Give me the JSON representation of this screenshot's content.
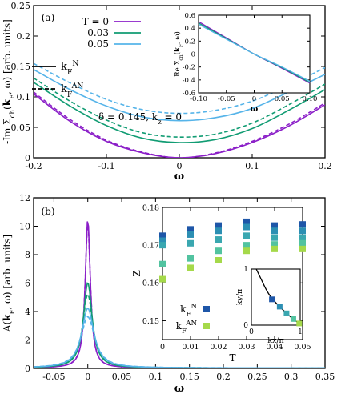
{
  "chart_data": [
    {
      "panel_label": "(a)",
      "type": "line",
      "xlabel": "ω",
      "ylabel": "-Im Σch(kF, ω) [arb. units]",
      "xlim": [
        -0.2,
        0.2
      ],
      "ylim": [
        0,
        0.25
      ],
      "xticks": [
        "-0.2",
        "-0.1",
        "0",
        "0.1",
        "0.2"
      ],
      "yticks": [
        "0",
        "0.05",
        "0.1",
        "0.15",
        "0.2",
        "0.25"
      ],
      "annotation": "δ = 0.145, kz = 0",
      "legend": {
        "temperatures": [
          {
            "label": "T = 0",
            "color": "#8B1FC8"
          },
          {
            "label": "0.03",
            "color": "#119C73"
          },
          {
            "label": "0.05",
            "color": "#56B4E9"
          }
        ],
        "linestyles": [
          {
            "label": "k_F^N",
            "dash": "solid"
          },
          {
            "label": "k_F^AN",
            "dash": "dashed"
          }
        ]
      },
      "series": [
        {
          "T": 0,
          "kF": "N",
          "color": "#8B1FC8",
          "dash": "solid",
          "x": [
            -0.2,
            -0.15,
            -0.1,
            -0.05,
            0,
            0.05,
            0.1,
            0.15,
            0.2
          ],
          "y": [
            0.105,
            0.06,
            0.027,
            0.008,
            0.0,
            0.007,
            0.025,
            0.052,
            0.087
          ]
        },
        {
          "T": 0,
          "kF": "AN",
          "color": "#8B1FC8",
          "dash": "dashed",
          "x": [
            -0.2,
            -0.15,
            -0.1,
            -0.05,
            0,
            0.05,
            0.1,
            0.15,
            0.2
          ],
          "y": [
            0.108,
            0.063,
            0.029,
            0.009,
            0.0,
            0.008,
            0.027,
            0.055,
            0.09
          ]
        },
        {
          "T": 0.03,
          "kF": "N",
          "color": "#119C73",
          "dash": "solid",
          "x": [
            -0.2,
            -0.15,
            -0.1,
            -0.05,
            0,
            0.05,
            0.1,
            0.15,
            0.2
          ],
          "y": [
            0.124,
            0.085,
            0.053,
            0.032,
            0.025,
            0.03,
            0.048,
            0.078,
            0.112
          ]
        },
        {
          "T": 0.03,
          "kF": "AN",
          "color": "#119C73",
          "dash": "dashed",
          "x": [
            -0.2,
            -0.15,
            -0.1,
            -0.05,
            0,
            0.05,
            0.1,
            0.15,
            0.2
          ],
          "y": [
            0.131,
            0.093,
            0.062,
            0.041,
            0.034,
            0.039,
            0.057,
            0.087,
            0.121
          ]
        },
        {
          "T": 0.05,
          "kF": "N",
          "color": "#56B4E9",
          "dash": "solid",
          "x": [
            -0.2,
            -0.15,
            -0.1,
            -0.05,
            0,
            0.05,
            0.1,
            0.15,
            0.2
          ],
          "y": [
            0.145,
            0.112,
            0.085,
            0.067,
            0.061,
            0.066,
            0.081,
            0.108,
            0.137
          ]
        },
        {
          "T": 0.05,
          "kF": "AN",
          "color": "#56B4E9",
          "dash": "dashed",
          "x": [
            -0.2,
            -0.15,
            -0.1,
            -0.05,
            0,
            0.05,
            0.1,
            0.15,
            0.2
          ],
          "y": [
            0.155,
            0.123,
            0.096,
            0.079,
            0.073,
            0.078,
            0.093,
            0.119,
            0.148
          ]
        }
      ]
    },
    {
      "panel_label": "(a) inset",
      "type": "line",
      "xlabel": "ω",
      "ylabel": "Re Σch(kF, ω)",
      "xlim": [
        -0.1,
        0.1
      ],
      "ylim": [
        -0.6,
        0.6
      ],
      "xticks": [
        "-0.10",
        "-0.05",
        "0",
        "0.05",
        "0.10"
      ],
      "yticks": [
        "-0.6",
        "-0.4",
        "-0.2",
        "0",
        "0.2",
        "0.4",
        "0.6"
      ],
      "series": [
        {
          "color": "#8B1FC8",
          "x": [
            -0.1,
            -0.05,
            0,
            0.05,
            0.1
          ],
          "y": [
            0.5,
            0.25,
            0.0,
            -0.22,
            -0.45
          ]
        },
        {
          "color": "#119C73",
          "x": [
            -0.1,
            -0.05,
            0,
            0.05,
            0.1
          ],
          "y": [
            0.48,
            0.24,
            0.0,
            -0.21,
            -0.44
          ]
        },
        {
          "color": "#56B4E9",
          "x": [
            -0.1,
            -0.05,
            0,
            0.05,
            0.1
          ],
          "y": [
            0.46,
            0.23,
            0.0,
            -0.2,
            -0.42
          ]
        }
      ]
    },
    {
      "panel_label": "(b)",
      "type": "line",
      "xlabel": "ω",
      "ylabel": "A(kF, ω) [arb. units]",
      "xlim": [
        -0.08,
        0.35
      ],
      "ylim": [
        0,
        12
      ],
      "xticks": [
        "-0.05",
        "0",
        "0.05",
        "0.1",
        "0.15",
        "0.2",
        "0.25",
        "0.3",
        "0.35"
      ],
      "yticks": [
        "0",
        "2",
        "4",
        "6",
        "8",
        "10",
        "12"
      ],
      "series": [
        {
          "T": 0,
          "kF": "N",
          "color": "#8B1FC8",
          "dash": "solid",
          "peak": 10.5,
          "width": 0.0045,
          "background": 0.03
        },
        {
          "T": 0,
          "kF": "AN",
          "color": "#8B1FC8",
          "dash": "dashed",
          "peak": 10.2,
          "width": 0.0047,
          "background": 0.03
        },
        {
          "T": 0.03,
          "kF": "N",
          "color": "#119C73",
          "dash": "solid",
          "peak": 6.0,
          "width": 0.0078,
          "background": 0.03
        },
        {
          "T": 0.03,
          "kF": "AN",
          "color": "#119C73",
          "dash": "dashed",
          "peak": 5.2,
          "width": 0.009,
          "background": 0.03
        },
        {
          "T": 0.05,
          "kF": "N",
          "color": "#56B4E9",
          "dash": "solid",
          "peak": 4.2,
          "width": 0.011,
          "background": 0.03
        },
        {
          "T": 0.05,
          "kF": "AN",
          "color": "#56B4E9",
          "dash": "dashed",
          "peak": 3.6,
          "width": 0.0125,
          "background": 0.03
        }
      ]
    },
    {
      "panel_label": "(b) inset",
      "type": "scatter",
      "xlabel": "T",
      "ylabel": "Z",
      "xlim": [
        0,
        0.05
      ],
      "ylim": [
        0.145,
        0.18
      ],
      "xticks": [
        "0",
        "0.01",
        "0.02",
        "0.03",
        "0.04",
        "0.05"
      ],
      "yticks": [
        "0.15",
        "0.16",
        "0.17",
        "0.18"
      ],
      "legend": [
        {
          "label": "k_F^N",
          "color": "#1E56A8"
        },
        {
          "label": "k_F^AN",
          "color": "#A5D94A"
        }
      ],
      "points": [
        {
          "T": 0,
          "Z": 0.1725,
          "color": "#1E56A8"
        },
        {
          "T": 0,
          "Z": 0.1712,
          "color": "#2C8FB3"
        },
        {
          "T": 0,
          "Z": 0.17,
          "color": "#3AA7B0"
        },
        {
          "T": 0,
          "Z": 0.165,
          "color": "#52C3A0"
        },
        {
          "T": 0,
          "Z": 0.161,
          "color": "#A5D94A"
        },
        {
          "T": 0.01,
          "Z": 0.1742,
          "color": "#1E56A8"
        },
        {
          "T": 0.01,
          "Z": 0.1728,
          "color": "#2C8FB3"
        },
        {
          "T": 0.01,
          "Z": 0.1705,
          "color": "#3AA7B0"
        },
        {
          "T": 0.01,
          "Z": 0.1665,
          "color": "#52C3A0"
        },
        {
          "T": 0.01,
          "Z": 0.164,
          "color": "#A5D94A"
        },
        {
          "T": 0.02,
          "Z": 0.1752,
          "color": "#1E56A8"
        },
        {
          "T": 0.02,
          "Z": 0.1738,
          "color": "#2C8FB3"
        },
        {
          "T": 0.02,
          "Z": 0.1715,
          "color": "#3AA7B0"
        },
        {
          "T": 0.02,
          "Z": 0.1685,
          "color": "#52C3A0"
        },
        {
          "T": 0.02,
          "Z": 0.166,
          "color": "#A5D94A"
        },
        {
          "T": 0.03,
          "Z": 0.1762,
          "color": "#1E56A8"
        },
        {
          "T": 0.03,
          "Z": 0.1748,
          "color": "#2C8FB3"
        },
        {
          "T": 0.03,
          "Z": 0.1725,
          "color": "#3AA7B0"
        },
        {
          "T": 0.03,
          "Z": 0.17,
          "color": "#52C3A0"
        },
        {
          "T": 0.03,
          "Z": 0.1685,
          "color": "#A5D94A"
        },
        {
          "T": 0.04,
          "Z": 0.1752,
          "color": "#1E56A8"
        },
        {
          "T": 0.04,
          "Z": 0.1738,
          "color": "#2C8FB3"
        },
        {
          "T": 0.04,
          "Z": 0.172,
          "color": "#3AA7B0"
        },
        {
          "T": 0.04,
          "Z": 0.1702,
          "color": "#52C3A0"
        },
        {
          "T": 0.04,
          "Z": 0.169,
          "color": "#A5D94A"
        },
        {
          "T": 0.05,
          "Z": 0.1755,
          "color": "#1E56A8"
        },
        {
          "T": 0.05,
          "Z": 0.1738,
          "color": "#2C8FB3"
        },
        {
          "T": 0.05,
          "Z": 0.172,
          "color": "#3AA7B0"
        },
        {
          "T": 0.05,
          "Z": 0.1705,
          "color": "#52C3A0"
        },
        {
          "T": 0.05,
          "Z": 0.169,
          "color": "#A5D94A"
        }
      ]
    },
    {
      "panel_label": "(b) Fermi surface inset",
      "type": "scatter",
      "xlabel": "kx/π",
      "ylabel": "ky/π",
      "xlim": [
        0,
        1
      ],
      "ylim": [
        0,
        1
      ],
      "xticks": [
        "0",
        "1"
      ],
      "yticks": [
        "0",
        "1"
      ],
      "fermi_surface": {
        "x": [
          0.1,
          0.2,
          0.3,
          0.4,
          0.5,
          0.6,
          0.7,
          0.8,
          0.9,
          1.0
        ],
        "y": [
          1.0,
          0.82,
          0.64,
          0.5,
          0.4,
          0.31,
          0.23,
          0.15,
          0.08,
          0.02
        ]
      },
      "points": [
        {
          "x": 0.42,
          "y": 0.46,
          "color": "#1E56A8"
        },
        {
          "x": 0.58,
          "y": 0.33,
          "color": "#2C8FB3"
        },
        {
          "x": 0.72,
          "y": 0.21,
          "color": "#3AA7B0"
        },
        {
          "x": 0.86,
          "y": 0.11,
          "color": "#52C3A0"
        },
        {
          "x": 0.98,
          "y": 0.03,
          "color": "#A5D94A"
        }
      ]
    }
  ]
}
